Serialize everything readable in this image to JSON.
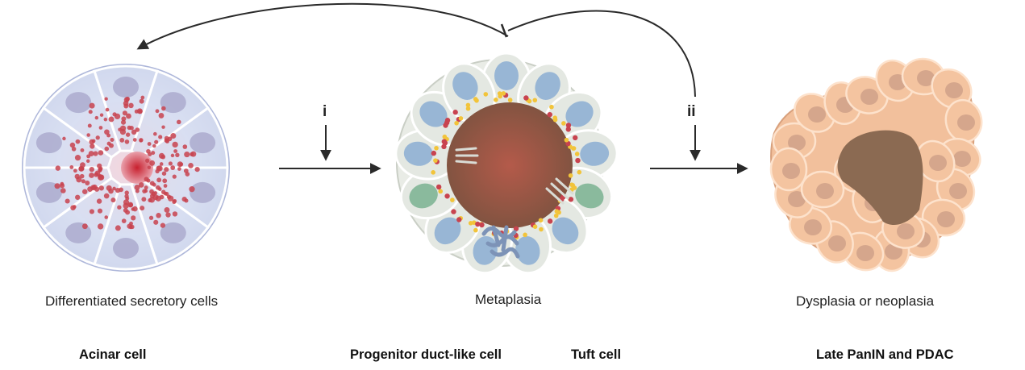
{
  "captions": {
    "acinar": "Differentiated secretory cells",
    "metaplasia": "Metaplasia",
    "dysplasia": "Dysplasia or neoplasia"
  },
  "labels": {
    "acinar": "Acinar cell",
    "progenitor": "Progenitor duct-like cell",
    "tuft": "Tuft cell",
    "late": "Late PanIN and PDAC"
  },
  "steps": {
    "i": "i",
    "ii": "ii"
  },
  "colors": {
    "acinar_cell": "#d6dcf0",
    "acinar_nucleus": "#a9a7cc",
    "zymogen": "#c8434f",
    "metaplasia_cell": "#e4e8e2",
    "lumen": "#8b5a46",
    "duct_nucleus": "#8fb0d4",
    "tuft_nucleus": "#7fb596",
    "granule": "#f2c43a",
    "neoplasia_cell": "#f4c4a0",
    "neoplasia_nucleus": "#cfa188",
    "arrow": "#2a2a2a"
  }
}
